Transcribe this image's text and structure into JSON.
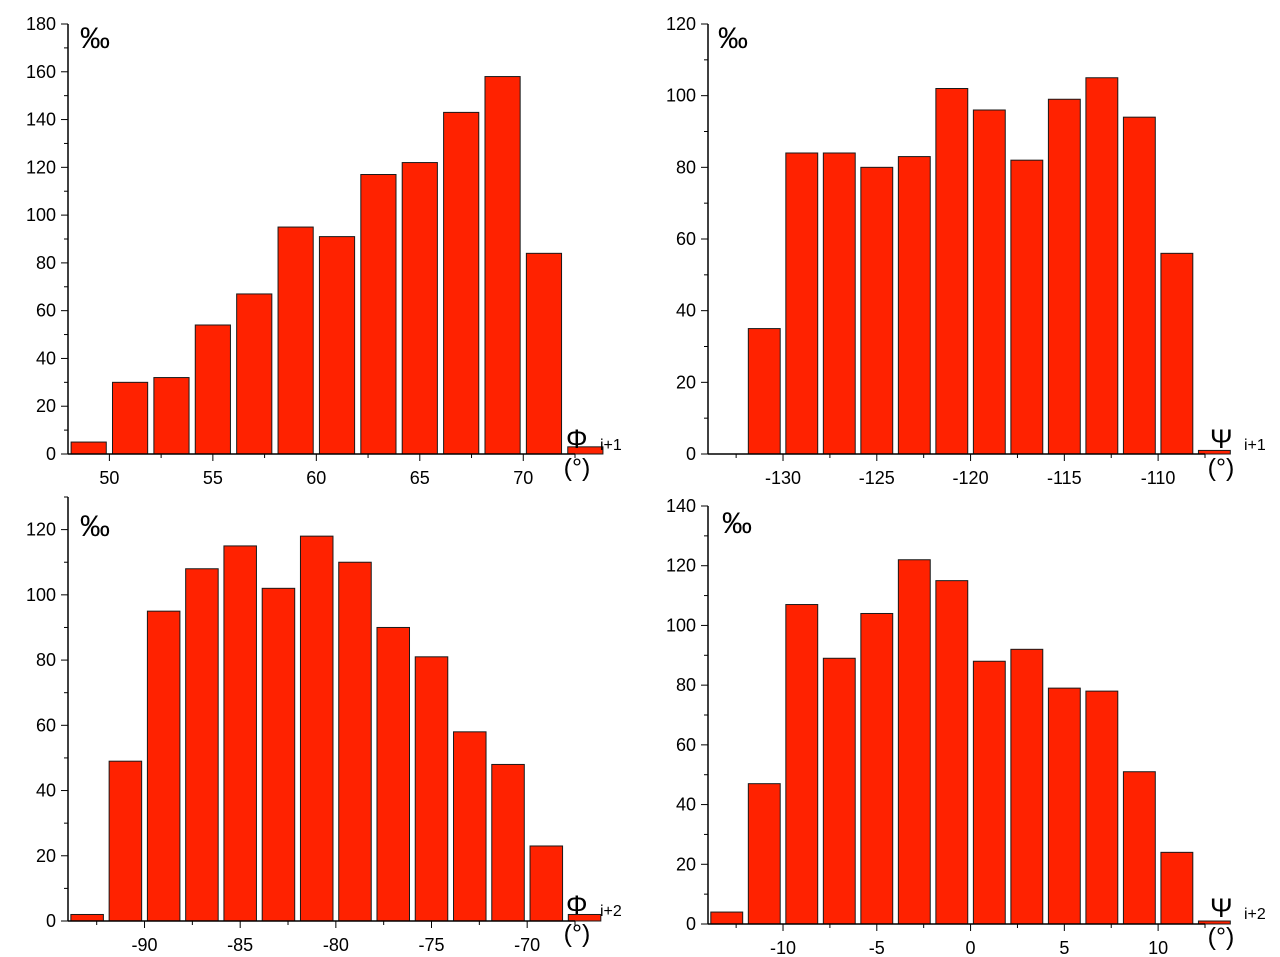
{
  "chart_data": [
    {
      "type": "bar",
      "ylabel": "‰",
      "xlabel": {
        "symbol": "Φ",
        "subscript": "i+1",
        "unit": "(°)"
      },
      "xlim": [
        48,
        72.5
      ],
      "ylim": [
        0,
        180
      ],
      "xticks": [
        50,
        55,
        60,
        65,
        70
      ],
      "yticks": [
        0,
        20,
        40,
        60,
        80,
        100,
        120,
        140,
        160,
        180
      ],
      "bar_width": 1.7,
      "x": [
        49,
        51,
        53,
        55,
        57,
        59,
        61,
        63,
        65,
        67,
        69,
        71,
        73
      ],
      "values": [
        5,
        30,
        32,
        54,
        67,
        95,
        91,
        117,
        122,
        143,
        158,
        84,
        3
      ]
    },
    {
      "type": "bar",
      "ylabel": "‰",
      "xlabel": {
        "symbol": "Ψ",
        "subscript": "i+1",
        "unit": "(°)"
      },
      "xlim": [
        -134,
        -107.5
      ],
      "ylim": [
        0,
        120
      ],
      "xticks": [
        -130,
        -125,
        -120,
        -115,
        -110
      ],
      "yticks": [
        0,
        20,
        40,
        60,
        80,
        100,
        120
      ],
      "bar_width": 1.7,
      "x": [
        -131,
        -129,
        -127,
        -125,
        -123,
        -121,
        -119,
        -117,
        -115,
        -113,
        -111,
        -109,
        -107
      ],
      "values": [
        35,
        84,
        84,
        80,
        83,
        102,
        96,
        82,
        99,
        105,
        94,
        56,
        1
      ]
    },
    {
      "type": "bar",
      "ylabel": "‰",
      "xlabel": {
        "symbol": "Φ",
        "subscript": "i+2",
        "unit": "(°)"
      },
      "xlim": [
        -94,
        -67.5
      ],
      "ylim": [
        0,
        130
      ],
      "xticks": [
        -90,
        -85,
        -80,
        -75,
        -70
      ],
      "yticks": [
        0,
        20,
        40,
        60,
        80,
        100,
        120
      ],
      "bar_width": 1.7,
      "x": [
        -93,
        -91,
        -89,
        -87,
        -85,
        -83,
        -81,
        -79,
        -77,
        -75,
        -73,
        -71,
        -69,
        -67
      ],
      "values": [
        2,
        49,
        95,
        108,
        115,
        102,
        118,
        110,
        90,
        81,
        58,
        48,
        23,
        2
      ]
    },
    {
      "type": "bar",
      "ylabel": "‰",
      "xlabel": {
        "symbol": "Ψ",
        "subscript": "i+2",
        "unit": "(°)"
      },
      "xlim": [
        -14,
        12.5
      ],
      "ylim": [
        0,
        140
      ],
      "xticks": [
        -10,
        -5,
        0,
        5,
        10
      ],
      "yticks": [
        0,
        20,
        40,
        60,
        80,
        100,
        120,
        140
      ],
      "bar_width": 1.7,
      "x": [
        -13,
        -11,
        -9,
        -7,
        -5,
        -3,
        -1,
        1,
        3,
        5,
        7,
        9,
        11,
        13
      ],
      "values": [
        4,
        47,
        107,
        89,
        104,
        122,
        115,
        88,
        92,
        79,
        78,
        51,
        24,
        1
      ]
    }
  ],
  "colors": {
    "bar_fill": "#ff2200",
    "bar_stroke": "#1a1a1a",
    "axis": "#000000"
  }
}
